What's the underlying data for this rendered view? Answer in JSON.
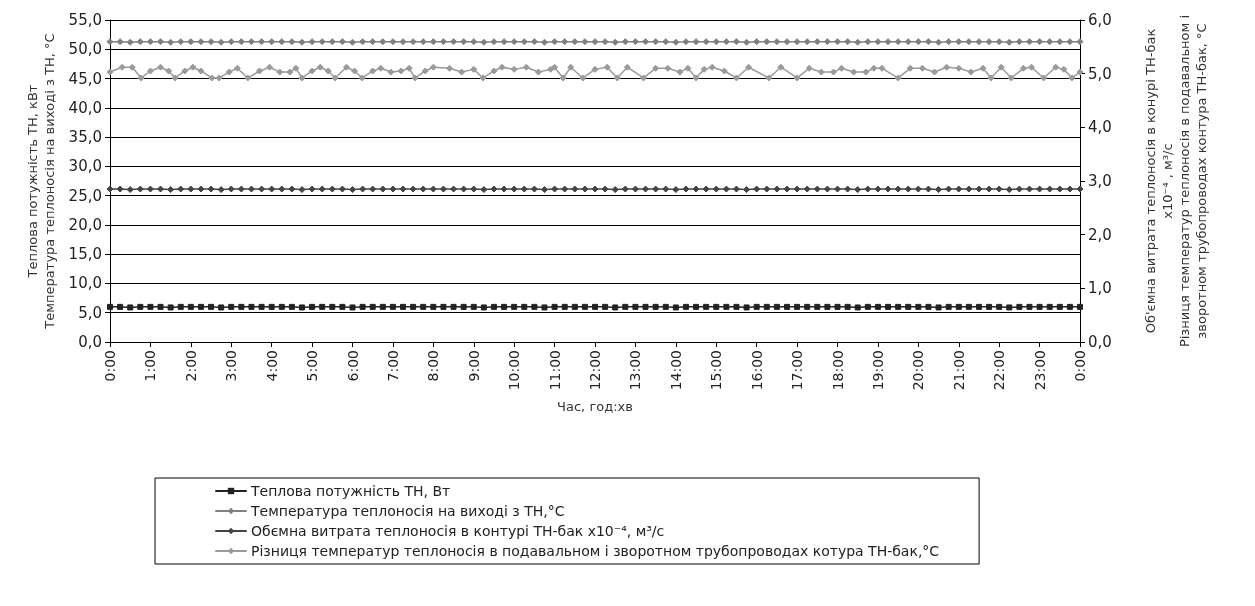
{
  "chart_data": {
    "type": "line",
    "ylabel": "Теплова потужність ТН, кВт\nТемпература теплоносія на виході з ТН, °С",
    "y2label": "Об'ємна витрата теплоносія в конурі ТН-бак\nx10⁻⁴ , м³/с\nРізниця температур теплоносія в подавальном і\nзворотном трубопроводах контура ТН-бак, °С",
    "xlabel": "Час, год:хв",
    "x": [
      0,
      0.25,
      0.5,
      0.75,
      1,
      1.25,
      1.5,
      1.75,
      2,
      2.25,
      2.5,
      2.75,
      3,
      3.25,
      3.5,
      3.75,
      4,
      4.25,
      4.5,
      4.75,
      5,
      5.25,
      5.5,
      5.75,
      6,
      6.25,
      6.5,
      6.75,
      7,
      7.25,
      7.5,
      7.75,
      8,
      8.25,
      8.5,
      8.75,
      9,
      9.25,
      9.5,
      9.75,
      10,
      10.25,
      10.5,
      10.75,
      11,
      11.25,
      11.5,
      11.75,
      12,
      12.25,
      12.5,
      12.75,
      13,
      13.25,
      13.5,
      13.75,
      14,
      14.25,
      14.5,
      14.75,
      15,
      15.25,
      15.5,
      15.75,
      16,
      16.25,
      16.5,
      16.75,
      17,
      17.25,
      17.5,
      17.75,
      18,
      18.25,
      18.5,
      18.75,
      19,
      19.25,
      19.5,
      19.75,
      20,
      20.25,
      20.5,
      20.75,
      21,
      21.25,
      21.5,
      21.75,
      22,
      22.25,
      22.5,
      22.75,
      23,
      23.25,
      23.5,
      23.75,
      24
    ],
    "series": [
      {
        "name": "Теплова потужність ТН, Вт",
        "color": "#222222",
        "marker": "square",
        "values": [
          6.0,
          6.0,
          5.9,
          6.0,
          6.0,
          6.0,
          5.9,
          6.0,
          6.0,
          6.0,
          6.0,
          5.9,
          6.0,
          6.0,
          6.0,
          6.0,
          6.0,
          6.0,
          6.0,
          5.9,
          6.0,
          6.0,
          6.0,
          6.0,
          5.9,
          6.0,
          6.0,
          6.0,
          6.0,
          6.0,
          6.0,
          6.0,
          6.0,
          6.0,
          6.0,
          6.0,
          6.0,
          5.9,
          6.0,
          6.0,
          6.0,
          6.0,
          6.0,
          5.9,
          6.0,
          6.0,
          6.0,
          6.0,
          6.0,
          6.0,
          5.9,
          6.0,
          6.0,
          6.0,
          6.0,
          6.0,
          5.9,
          6.0,
          6.0,
          6.0,
          6.0,
          6.0,
          6.0,
          5.9,
          6.0,
          6.0,
          6.0,
          6.0,
          6.0,
          6.0,
          6.0,
          6.0,
          6.0,
          6.0,
          5.9,
          6.0,
          6.0,
          6.0,
          6.0,
          6.0,
          6.0,
          6.0,
          5.9,
          6.0,
          6.0,
          6.0,
          6.0,
          6.0,
          6.0,
          5.9,
          6.0,
          6.0,
          6.0,
          6.0,
          6.0,
          6.0,
          6.0
        ]
      },
      {
        "name": "Температура теплоносія на виході з ТН,°С",
        "color": "#808080",
        "marker": "diamond",
        "values": [
          51.3,
          51.3,
          51.2,
          51.3,
          51.3,
          51.3,
          51.2,
          51.3,
          51.3,
          51.3,
          51.3,
          51.2,
          51.3,
          51.3,
          51.3,
          51.3,
          51.3,
          51.3,
          51.3,
          51.2,
          51.3,
          51.3,
          51.3,
          51.3,
          51.2,
          51.3,
          51.3,
          51.3,
          51.3,
          51.3,
          51.3,
          51.3,
          51.3,
          51.3,
          51.3,
          51.3,
          51.3,
          51.2,
          51.3,
          51.3,
          51.3,
          51.3,
          51.3,
          51.2,
          51.3,
          51.3,
          51.3,
          51.3,
          51.3,
          51.3,
          51.2,
          51.3,
          51.3,
          51.3,
          51.3,
          51.3,
          51.2,
          51.3,
          51.3,
          51.3,
          51.3,
          51.3,
          51.3,
          51.2,
          51.3,
          51.3,
          51.3,
          51.3,
          51.3,
          51.3,
          51.3,
          51.3,
          51.3,
          51.3,
          51.2,
          51.3,
          51.3,
          51.3,
          51.3,
          51.3,
          51.3,
          51.3,
          51.2,
          51.3,
          51.3,
          51.3,
          51.3,
          51.3,
          51.3,
          51.2,
          51.3,
          51.3,
          51.3,
          51.3,
          51.3,
          51.3,
          51.3
        ]
      },
      {
        "name": "Обємна витрата теплоносія в контурі ТН-бак x10⁻⁴, м³/с",
        "color": "#444444",
        "marker": "diamond",
        "axis": "y2",
        "values": [
          2.85,
          2.85,
          2.84,
          2.85,
          2.85,
          2.85,
          2.84,
          2.85,
          2.85,
          2.85,
          2.85,
          2.84,
          2.85,
          2.85,
          2.85,
          2.85,
          2.85,
          2.85,
          2.85,
          2.84,
          2.85,
          2.85,
          2.85,
          2.85,
          2.84,
          2.85,
          2.85,
          2.85,
          2.85,
          2.85,
          2.85,
          2.85,
          2.85,
          2.85,
          2.85,
          2.85,
          2.85,
          2.84,
          2.85,
          2.85,
          2.85,
          2.85,
          2.85,
          2.84,
          2.85,
          2.85,
          2.85,
          2.85,
          2.85,
          2.85,
          2.84,
          2.85,
          2.85,
          2.85,
          2.85,
          2.85,
          2.84,
          2.85,
          2.85,
          2.85,
          2.85,
          2.85,
          2.85,
          2.84,
          2.85,
          2.85,
          2.85,
          2.85,
          2.85,
          2.85,
          2.85,
          2.85,
          2.85,
          2.85,
          2.84,
          2.85,
          2.85,
          2.85,
          2.85,
          2.85,
          2.85,
          2.85,
          2.84,
          2.85,
          2.85,
          2.85,
          2.85,
          2.85,
          2.85,
          2.84,
          2.85,
          2.85,
          2.85,
          2.85,
          2.85,
          2.85,
          2.85
        ]
      },
      {
        "name": "Різниця температур теплоносія в подавальном і зворотном трубопроводах котура ТН-бак,°С",
        "color": "#9a9a9a",
        "marker": "diamond",
        "axis": "y2",
        "x": [
          0,
          0.3,
          0.55,
          0.77,
          1.0,
          1.25,
          1.45,
          1.61,
          1.85,
          2.05,
          2.25,
          2.52,
          2.7,
          2.95,
          3.15,
          3.41,
          3.7,
          3.95,
          4.2,
          4.45,
          4.6,
          4.75,
          5.0,
          5.2,
          5.4,
          5.57,
          5.85,
          6.05,
          6.24,
          6.5,
          6.7,
          6.95,
          7.2,
          7.4,
          7.55,
          7.8,
          8.0,
          8.4,
          8.7,
          9.0,
          9.23,
          9.5,
          9.7,
          10.0,
          10.3,
          10.6,
          10.9,
          11.0,
          11.21,
          11.4,
          11.7,
          12.0,
          12.3,
          12.55,
          12.8,
          13.2,
          13.5,
          13.8,
          14.1,
          14.3,
          14.5,
          14.7,
          14.9,
          15.2,
          15.5,
          15.8,
          16.3,
          16.6,
          17.0,
          17.3,
          17.6,
          17.9,
          18.1,
          18.4,
          18.7,
          18.9,
          19.1,
          19.5,
          19.8,
          20.1,
          20.4,
          20.7,
          21.0,
          21.3,
          21.6,
          21.8,
          22.05,
          22.3,
          22.6,
          22.8,
          23.1,
          23.4,
          23.6,
          23.8,
          24
        ],
        "values": [
          5.03,
          5.12,
          5.12,
          4.92,
          5.05,
          5.12,
          5.05,
          4.92,
          5.05,
          5.12,
          5.05,
          4.92,
          4.92,
          5.03,
          5.1,
          4.92,
          5.05,
          5.12,
          5.03,
          5.03,
          5.1,
          4.92,
          5.05,
          5.12,
          5.05,
          4.92,
          5.12,
          5.05,
          4.92,
          5.05,
          5.1,
          5.03,
          5.05,
          5.1,
          4.92,
          5.05,
          5.12,
          5.1,
          5.03,
          5.08,
          4.92,
          5.05,
          5.12,
          5.08,
          5.12,
          5.03,
          5.08,
          5.12,
          4.92,
          5.12,
          4.92,
          5.08,
          5.12,
          4.92,
          5.12,
          4.92,
          5.1,
          5.1,
          5.03,
          5.1,
          4.92,
          5.08,
          5.12,
          5.05,
          4.92,
          5.12,
          4.92,
          5.12,
          4.92,
          5.1,
          5.03,
          5.03,
          5.1,
          5.03,
          5.03,
          5.1,
          5.1,
          4.92,
          5.1,
          5.1,
          5.03,
          5.12,
          5.1,
          5.03,
          5.1,
          4.92,
          5.12,
          4.92,
          5.1,
          5.12,
          4.92,
          5.12,
          5.08,
          4.92,
          5.03
        ]
      }
    ],
    "xlim": [
      0,
      24
    ],
    "xticks": [
      {
        "value": 0,
        "label": "0:00"
      },
      {
        "value": 1,
        "label": "1:00"
      },
      {
        "value": 2,
        "label": "2:00"
      },
      {
        "value": 3,
        "label": "3:00"
      },
      {
        "value": 4,
        "label": "4:00"
      },
      {
        "value": 5,
        "label": "5:00"
      },
      {
        "value": 6,
        "label": "6:00"
      },
      {
        "value": 7,
        "label": "7:00"
      },
      {
        "value": 8,
        "label": "8:00"
      },
      {
        "value": 9,
        "label": "9:00"
      },
      {
        "value": 10,
        "label": "10:00"
      },
      {
        "value": 11,
        "label": "11:00"
      },
      {
        "value": 12,
        "label": "12:00"
      },
      {
        "value": 13,
        "label": "13:00"
      },
      {
        "value": 14,
        "label": "14:00"
      },
      {
        "value": 15,
        "label": "15:00"
      },
      {
        "value": 16,
        "label": "16:00"
      },
      {
        "value": 17,
        "label": "17:00"
      },
      {
        "value": 18,
        "label": "18:00"
      },
      {
        "value": 19,
        "label": "19:00"
      },
      {
        "value": 20,
        "label": "20:00"
      },
      {
        "value": 21,
        "label": "21:00"
      },
      {
        "value": 22,
        "label": "22:00"
      },
      {
        "value": 23,
        "label": "23:00"
      },
      {
        "value": 24,
        "label": "0:00"
      }
    ],
    "ylim": [
      0,
      55
    ],
    "yticks": [
      {
        "value": 0,
        "label": "0,0"
      },
      {
        "value": 5,
        "label": "5,0"
      },
      {
        "value": 10,
        "label": "10,0"
      },
      {
        "value": 15,
        "label": "15,0"
      },
      {
        "value": 20,
        "label": "20,0"
      },
      {
        "value": 25,
        "label": "25,0"
      },
      {
        "value": 30,
        "label": "30,0"
      },
      {
        "value": 35,
        "label": "35,0"
      },
      {
        "value": 40,
        "label": "40,0"
      },
      {
        "value": 45,
        "label": "45,0"
      },
      {
        "value": 50,
        "label": "50,0"
      },
      {
        "value": 55,
        "label": "55,0"
      }
    ],
    "y2lim": [
      0,
      6
    ],
    "y2ticks": [
      {
        "value": 0,
        "label": "0,0"
      },
      {
        "value": 1,
        "label": "1,0"
      },
      {
        "value": 2,
        "label": "2,0"
      },
      {
        "value": 3,
        "label": "3,0"
      },
      {
        "value": 4,
        "label": "4,0"
      },
      {
        "value": 5,
        "label": "5,0"
      },
      {
        "value": 6,
        "label": "6,0"
      }
    ],
    "grid": "y",
    "legend": "bottom",
    "line_style": "solid"
  }
}
